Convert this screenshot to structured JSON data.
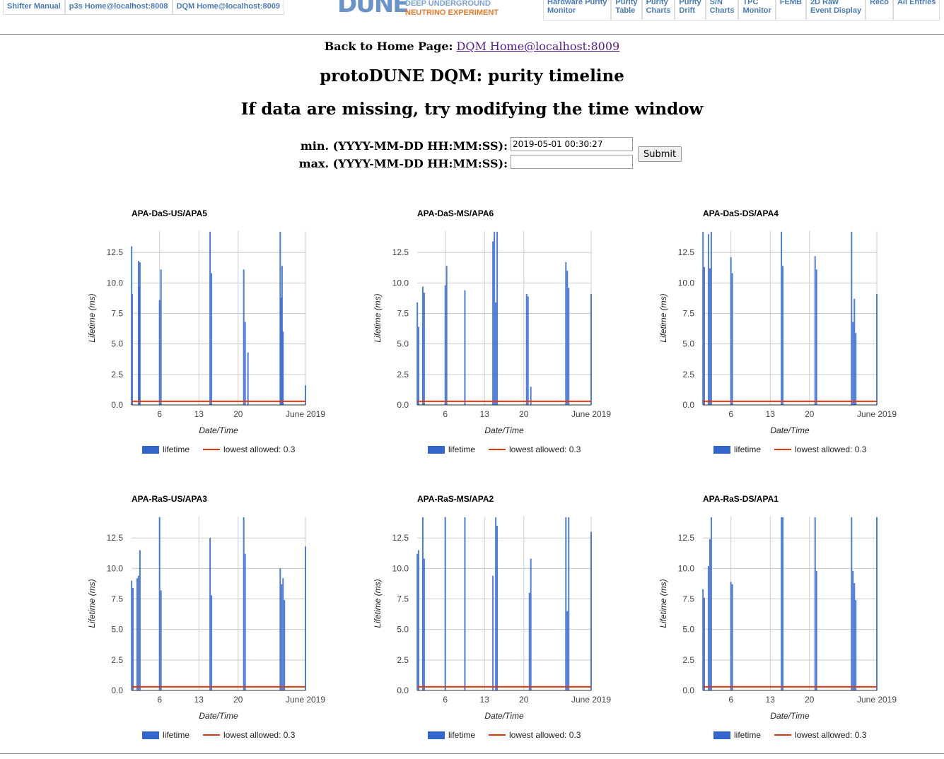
{
  "nav": {
    "left": [
      "Shifter Manual",
      "p3s Home@localhost:8008",
      "DQM Home@localhost:8009"
    ],
    "right": [
      [
        "Hardware Purity",
        "Monitor"
      ],
      [
        "Purity",
        "Table"
      ],
      [
        "Purity",
        "Charts"
      ],
      [
        "Purity",
        "Drift"
      ],
      [
        "S/N",
        "Charts"
      ],
      [
        "TPC",
        "Monitor"
      ],
      [
        "FEMB",
        ""
      ],
      [
        "2D Raw",
        "Event Display"
      ],
      [
        "Reco",
        ""
      ],
      [
        "All Entries",
        ""
      ]
    ]
  },
  "logo": {
    "mark": "DUNE",
    "line1": "DEEP UNDERGROUND",
    "line2": "NEUTRINO EXPERIMENT"
  },
  "back": {
    "label": "Back to Home Page:",
    "link": "DQM Home@localhost:8009"
  },
  "title": "protoDUNE DQM: purity timeline",
  "subtitle": "If data are missing, try modifying the time window",
  "form": {
    "min_label": "min. (YYYY-MM-DD HH:MM:SS):",
    "max_label": "max. (YYYY-MM-DD HH:MM:SS):",
    "min_value": "2019-05-01 00:30:27",
    "max_value": "",
    "submit": "Submit"
  },
  "colors": {
    "lifetime": "#3366cc",
    "threshold": "#dc3912",
    "nav_text": "#4a7bb5"
  },
  "chart_data": [
    {
      "type": "bar",
      "title": "APA-DaS-US/APA5",
      "xlabel": "Date/Time",
      "ylabel": "Lifetime (ms)",
      "ylim": [
        0,
        14.25
      ],
      "yticks": [
        "0.0",
        "2.5",
        "5.0",
        "7.5",
        "10.0",
        "12.5"
      ],
      "xlim": [
        "2019-05-01",
        "2019-06-01"
      ],
      "xticks": [
        [
          "2019-05-06",
          "6"
        ],
        [
          "2019-05-13",
          "13"
        ],
        [
          "2019-05-20",
          "20"
        ],
        [
          "2019-06-01",
          "June 2019"
        ]
      ],
      "threshold": 0.3,
      "legend": [
        "lifetime",
        "lowest allowed: 0.3"
      ],
      "x": [
        "2019-05-01 00:30",
        "2019-05-01 03:00",
        "2019-05-02 06:00",
        "2019-05-02 09:00",
        "2019-05-02 12:00",
        "2019-05-06 00:00",
        "2019-05-06 06:00",
        "2019-05-15 00:00",
        "2019-05-15 06:00",
        "2019-05-21 00:00",
        "2019-05-21 06:00",
        "2019-05-21 18:00",
        "2019-05-27 12:00",
        "2019-05-27 16:00",
        "2019-05-27 20:00",
        "2019-05-28 00:00",
        "2019-06-01 00:00"
      ],
      "values": [
        13,
        9.1,
        11.8,
        9.7,
        11.7,
        8.6,
        11.1,
        14.2,
        10.8,
        11.1,
        6.8,
        4.3,
        14.2,
        8.8,
        11.4,
        6.0,
        1.6
      ]
    },
    {
      "type": "bar",
      "title": "APA-DaS-MS/APA6",
      "xlabel": "Date/Time",
      "ylabel": "Lifetime (ms)",
      "ylim": [
        0,
        14.25
      ],
      "yticks": [
        "0.0",
        "2.5",
        "5.0",
        "7.5",
        "10.0",
        "12.5"
      ],
      "xlim": [
        "2019-05-01",
        "2019-06-01"
      ],
      "xticks": [
        [
          "2019-05-06",
          "6"
        ],
        [
          "2019-05-13",
          "13"
        ],
        [
          "2019-05-20",
          "20"
        ],
        [
          "2019-06-01",
          "June 2019"
        ]
      ],
      "threshold": 0.3,
      "legend": [
        "lifetime",
        "lowest allowed: 0.3"
      ],
      "x": [
        "2019-05-01 00:30",
        "2019-05-01 06:00",
        "2019-05-02 00:00",
        "2019-05-02 06:00",
        "2019-05-06 00:00",
        "2019-05-06 06:00",
        "2019-05-09 12:00",
        "2019-05-14 12:00",
        "2019-05-14 18:00",
        "2019-05-15 00:00",
        "2019-05-15 06:00",
        "2019-05-20 12:00",
        "2019-05-20 18:00",
        "2019-05-21 06:00",
        "2019-05-27 12:00",
        "2019-05-27 18:00",
        "2019-05-28 00:00",
        "2019-06-01 00:00"
      ],
      "values": [
        8.4,
        6.4,
        9.7,
        9.2,
        9.8,
        11.4,
        9.4,
        13.4,
        14.2,
        8.4,
        14.2,
        9.1,
        8.9,
        1.5,
        11.7,
        11.0,
        9.6,
        9.1
      ]
    },
    {
      "type": "bar",
      "title": "APA-DaS-DS/APA4",
      "xlabel": "Date/Time",
      "ylabel": "Lifetime (ms)",
      "ylim": [
        0,
        14.25
      ],
      "yticks": [
        "0.0",
        "2.5",
        "5.0",
        "7.5",
        "10.0",
        "12.5"
      ],
      "xlim": [
        "2019-05-01",
        "2019-06-01"
      ],
      "xticks": [
        [
          "2019-05-06",
          "6"
        ],
        [
          "2019-05-13",
          "13"
        ],
        [
          "2019-05-20",
          "20"
        ],
        [
          "2019-06-01",
          "June 2019"
        ]
      ],
      "threshold": 0.3,
      "legend": [
        "lifetime",
        "lowest allowed: 0.3"
      ],
      "x": [
        "2019-05-01 00:30",
        "2019-05-01 06:00",
        "2019-05-02 00:00",
        "2019-05-02 06:00",
        "2019-05-02 12:00",
        "2019-05-06 00:00",
        "2019-05-06 06:00",
        "2019-05-15 00:00",
        "2019-05-15 06:00",
        "2019-05-21 00:00",
        "2019-05-21 06:00",
        "2019-05-27 12:00",
        "2019-05-27 18:00",
        "2019-05-28 00:00",
        "2019-05-28 06:00",
        "2019-06-01 00:00"
      ],
      "values": [
        14.2,
        11.3,
        14.0,
        11.2,
        14.2,
        12.1,
        10.8,
        14.2,
        11.4,
        12.2,
        11.1,
        14.2,
        6.8,
        8.7,
        5.9,
        9.1
      ]
    },
    {
      "type": "bar",
      "title": "APA-RaS-US/APA3",
      "xlabel": "Date/Time",
      "ylabel": "Lifetime (ms)",
      "ylim": [
        0,
        14.25
      ],
      "yticks": [
        "0.0",
        "2.5",
        "5.0",
        "7.5",
        "10.0",
        "12.5"
      ],
      "xlim": [
        "2019-05-01",
        "2019-06-01"
      ],
      "xticks": [
        [
          "2019-05-06",
          "6"
        ],
        [
          "2019-05-13",
          "13"
        ],
        [
          "2019-05-20",
          "20"
        ],
        [
          "2019-06-01",
          "June 2019"
        ]
      ],
      "threshold": 0.3,
      "legend": [
        "lifetime",
        "lowest allowed: 0.3"
      ],
      "x": [
        "2019-05-01 00:30",
        "2019-05-01 06:00",
        "2019-05-02 00:00",
        "2019-05-02 06:00",
        "2019-05-02 12:00",
        "2019-05-06 00:00",
        "2019-05-06 06:00",
        "2019-05-15 00:00",
        "2019-05-15 06:00",
        "2019-05-21 00:00",
        "2019-05-21 06:00",
        "2019-05-27 12:00",
        "2019-05-27 18:00",
        "2019-05-28 00:00",
        "2019-05-28 06:00",
        "2019-06-01 00:00"
      ],
      "values": [
        9.0,
        8.4,
        9.2,
        9.4,
        11.5,
        14.2,
        8.2,
        12.5,
        7.8,
        14.2,
        11.2,
        10.0,
        8.7,
        9.2,
        7.4,
        11.8
      ]
    },
    {
      "type": "bar",
      "title": "APA-RaS-MS/APA2",
      "xlabel": "Date/Time",
      "ylabel": "Lifetime (ms)",
      "ylim": [
        0,
        14.25
      ],
      "yticks": [
        "0.0",
        "2.5",
        "5.0",
        "7.5",
        "10.0",
        "12.5"
      ],
      "xlim": [
        "2019-05-01",
        "2019-06-01"
      ],
      "xticks": [
        [
          "2019-05-06",
          "6"
        ],
        [
          "2019-05-13",
          "13"
        ],
        [
          "2019-05-20",
          "20"
        ],
        [
          "2019-06-01",
          "June 2019"
        ]
      ],
      "threshold": 0.3,
      "legend": [
        "lifetime",
        "lowest allowed: 0.3"
      ],
      "x": [
        "2019-05-01 00:30",
        "2019-05-01 06:00",
        "2019-05-02 00:00",
        "2019-05-02 06:00",
        "2019-05-06 00:00",
        "2019-05-09 12:00",
        "2019-05-14 12:00",
        "2019-05-15 00:00",
        "2019-05-15 06:00",
        "2019-05-21 00:00",
        "2019-05-21 06:00",
        "2019-05-27 12:00",
        "2019-05-27 18:00",
        "2019-05-28 00:00",
        "2019-06-01 00:00"
      ],
      "values": [
        11.2,
        11.5,
        14.2,
        10.8,
        14.2,
        14.2,
        9.4,
        14.2,
        13.5,
        8.0,
        10.8,
        14.2,
        6.5,
        14.2,
        13.0
      ]
    },
    {
      "type": "bar",
      "title": "APA-RaS-DS/APA1",
      "xlabel": "Date/Time",
      "ylabel": "Lifetime (ms)",
      "ylim": [
        0,
        14.25
      ],
      "yticks": [
        "0.0",
        "2.5",
        "5.0",
        "7.5",
        "10.0",
        "12.5"
      ],
      "xlim": [
        "2019-05-01",
        "2019-06-01"
      ],
      "xticks": [
        [
          "2019-05-06",
          "6"
        ],
        [
          "2019-05-13",
          "13"
        ],
        [
          "2019-05-20",
          "20"
        ],
        [
          "2019-06-01",
          "June 2019"
        ]
      ],
      "threshold": 0.3,
      "legend": [
        "lifetime",
        "lowest allowed: 0.3"
      ],
      "x": [
        "2019-05-01 00:30",
        "2019-05-01 06:00",
        "2019-05-02 00:00",
        "2019-05-02 06:00",
        "2019-05-02 12:00",
        "2019-05-06 00:00",
        "2019-05-06 06:00",
        "2019-05-15 00:00",
        "2019-05-15 06:00",
        "2019-05-21 00:00",
        "2019-05-21 06:00",
        "2019-05-27 12:00",
        "2019-05-27 18:00",
        "2019-05-28 00:00",
        "2019-05-28 06:00",
        "2019-06-01 00:00"
      ],
      "values": [
        8.3,
        7.6,
        10.2,
        12.4,
        14.2,
        8.9,
        8.7,
        14.2,
        14.2,
        14.2,
        9.8,
        14.2,
        9.8,
        8.8,
        7.4,
        14.2
      ]
    }
  ]
}
